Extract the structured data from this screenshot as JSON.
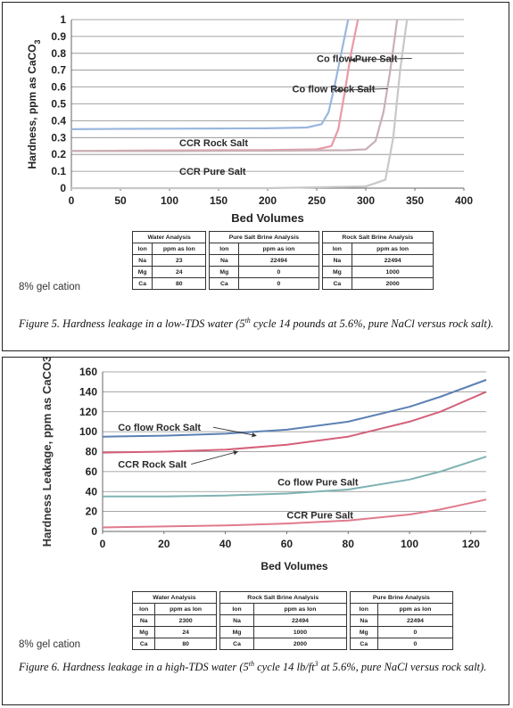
{
  "panels": [
    {
      "caption_prefix": "Figure 5.  Hardness leakage in a low-TDS water (5",
      "caption_sup": "th",
      "caption_suffix": " cycle 14 pounds at 5.6%, pure NaCl versus rock salt).",
      "gel_text": "8% gel cation",
      "tables": {
        "water": {
          "title": "Water Analysis",
          "headers": [
            "Ion",
            "ppm as Ion"
          ],
          "rows": [
            [
              "Na",
              "23"
            ],
            [
              "Mg",
              "24"
            ],
            [
              "Ca",
              "80"
            ]
          ]
        },
        "brine1": {
          "title": "Pure Salt Brine Analysis",
          "headers": [
            "Ion",
            "ppm as ion"
          ],
          "rows": [
            [
              "Na",
              "22494"
            ],
            [
              "Mg",
              "0"
            ],
            [
              "Ca",
              "0"
            ]
          ]
        },
        "brine2": {
          "title": "Rock Salt Brine Analysis",
          "headers": [
            "Ion",
            "ppm as Ion"
          ],
          "rows": [
            [
              "Na",
              "22494"
            ],
            [
              "Mg",
              "1000"
            ],
            [
              "Ca",
              "2000"
            ]
          ]
        }
      }
    },
    {
      "caption_prefix": "Figure 6.  Hardness leakage in a high-TDS water (5",
      "caption_sup": "th",
      "caption_mid": " cycle 14 lb/ft",
      "caption_sup2": "3",
      "caption_suffix": " at 5.6%, pure NaCl versus rock salt).",
      "gel_text": "8% gel cation",
      "tables": {
        "water": {
          "title": "Water Analysis",
          "headers": [
            "Ion",
            "ppm as Ion"
          ],
          "rows": [
            [
              "Na",
              "2300"
            ],
            [
              "Mg",
              "24"
            ],
            [
              "Ca",
              "80"
            ]
          ]
        },
        "brine1": {
          "title": "Rock Salt Brine Analysis",
          "headers": [
            "Ion",
            "ppm as Ion"
          ],
          "rows": [
            [
              "Na",
              "22494"
            ],
            [
              "Mg",
              "1000"
            ],
            [
              "Ca",
              "2000"
            ]
          ]
        },
        "brine2": {
          "title": "Pure Brine Analysis",
          "headers": [
            "Ion",
            "ppm as Ion"
          ],
          "rows": [
            [
              "Na",
              "22494"
            ],
            [
              "Mg",
              "0"
            ],
            [
              "Ca",
              "0"
            ]
          ]
        }
      }
    }
  ],
  "chart_data": [
    {
      "type": "line",
      "xlabel": "Bed Volumes",
      "ylabel": "Hardness, ppm as CaCO",
      "ylabel_sub": "3",
      "xlim": [
        0,
        400
      ],
      "ylim": [
        0,
        1
      ],
      "x_ticks": [
        "0",
        "50",
        "100",
        "150",
        "200",
        "250",
        "300",
        "350",
        "400"
      ],
      "y_ticks": [
        "0",
        "0.1",
        "0.2",
        "0.3",
        "0.4",
        "0.5",
        "0.6",
        "0.7",
        "0.8",
        "0.9",
        "1"
      ],
      "grid": "horizontal",
      "series": [
        {
          "name": "Co flow Pure Salt",
          "color": "#9ab7de",
          "x": [
            0,
            50,
            100,
            150,
            200,
            240,
            255,
            262,
            268,
            275,
            282
          ],
          "y": [
            0.35,
            0.352,
            0.353,
            0.354,
            0.355,
            0.36,
            0.38,
            0.45,
            0.6,
            0.8,
            1.0
          ]
        },
        {
          "name": "Co flow Rock Salt",
          "color": "#e89aa6",
          "x": [
            0,
            50,
            100,
            150,
            200,
            250,
            265,
            272,
            278,
            285,
            292
          ],
          "y": [
            0.22,
            0.222,
            0.224,
            0.225,
            0.226,
            0.23,
            0.25,
            0.35,
            0.55,
            0.8,
            1.0
          ]
        },
        {
          "name": "CCR Rock Salt",
          "color": "#c8b0b6",
          "x": [
            0,
            100,
            200,
            280,
            300,
            310,
            318,
            325,
            332
          ],
          "y": [
            0.22,
            0.22,
            0.222,
            0.225,
            0.23,
            0.28,
            0.45,
            0.7,
            1.0
          ]
        },
        {
          "name": "CCR Pure Salt",
          "color": "#c8c8c8",
          "x": [
            0,
            100,
            200,
            300,
            320,
            328,
            335,
            342
          ],
          "y": [
            0.0,
            0.0,
            0.0,
            0.01,
            0.05,
            0.3,
            0.7,
            1.0
          ]
        }
      ],
      "labels": [
        {
          "text": "Co flow Pure Salt",
          "x": 250,
          "y": 0.75,
          "arrow_to": [
            285,
            0.76
          ]
        },
        {
          "text": "Co flow Rock Salt",
          "x": 225,
          "y": 0.57,
          "arrow_to": [
            270,
            0.58
          ]
        },
        {
          "text": "CCR Rock Salt",
          "x": 110,
          "y": 0.25
        },
        {
          "text": "CCR Pure Salt",
          "x": 110,
          "y": 0.08
        }
      ]
    },
    {
      "type": "line",
      "xlabel": "Bed Volumes",
      "ylabel": "Hardness Leakage, ppm as CaCO3",
      "xlim": [
        0,
        125
      ],
      "ylim": [
        0,
        160
      ],
      "x_ticks": [
        "0",
        "20",
        "40",
        "60",
        "80",
        "100",
        "120"
      ],
      "y_ticks": [
        "0",
        "20",
        "40",
        "60",
        "80",
        "100",
        "120",
        "140",
        "160"
      ],
      "grid": "horizontal",
      "series": [
        {
          "name": "Co flow Rock Salt",
          "color": "#5b80b3",
          "x": [
            0,
            20,
            40,
            60,
            80,
            100,
            110,
            125
          ],
          "y": [
            95,
            96,
            98,
            102,
            110,
            125,
            135,
            152
          ]
        },
        {
          "name": "CCR Rock Salt",
          "color": "#d4607a",
          "x": [
            0,
            20,
            40,
            60,
            80,
            100,
            110,
            125
          ],
          "y": [
            79,
            80,
            82,
            87,
            95,
            110,
            120,
            140
          ]
        },
        {
          "name": "Co flow Pure Salt",
          "color": "#7fb2b3",
          "x": [
            0,
            20,
            40,
            60,
            80,
            100,
            110,
            125
          ],
          "y": [
            35,
            35,
            36,
            38,
            42,
            52,
            60,
            75
          ]
        },
        {
          "name": "CCR Pure Salt",
          "color": "#e07a8b",
          "x": [
            0,
            20,
            40,
            60,
            80,
            100,
            110,
            125
          ],
          "y": [
            4,
            5,
            6,
            8,
            11,
            17,
            22,
            32
          ]
        }
      ],
      "labels": [
        {
          "text": "Co flow Rock Salt",
          "x": 5,
          "y": 101,
          "arrow_to": [
            50,
            96
          ]
        },
        {
          "text": "CCR Rock Salt",
          "x": 5,
          "y": 64,
          "arrow_to": [
            44,
            80
          ]
        },
        {
          "text": "Co flow Pure Salt",
          "x": 57,
          "y": 46
        },
        {
          "text": "CCR Pure Salt",
          "x": 60,
          "y": 13
        }
      ]
    }
  ]
}
